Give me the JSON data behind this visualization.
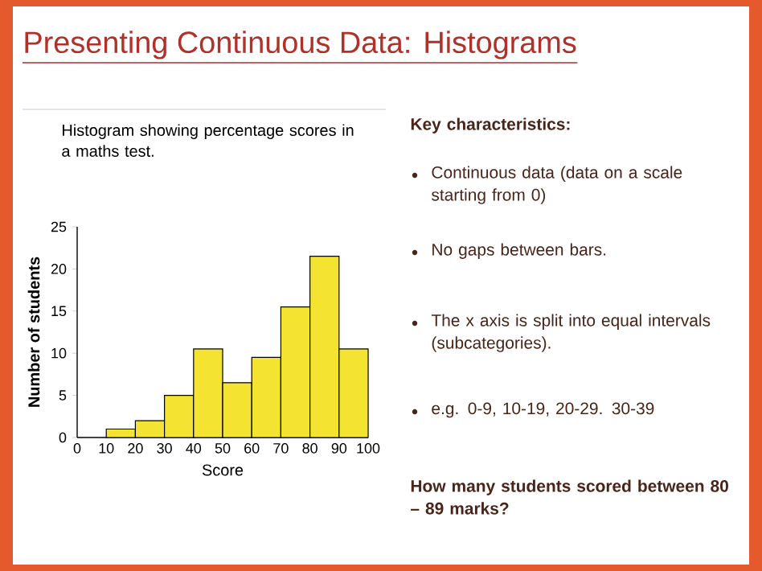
{
  "chart_data": {
    "type": "histogram",
    "title": "Presenting Continuous Data: Histograms",
    "subtitle": "Histogram showing percentage scores in a maths test.",
    "xlabel": "Score",
    "ylabel": "Number of students",
    "bins": [
      10,
      20,
      30,
      40,
      50,
      60,
      70,
      80,
      90,
      100
    ],
    "values": [
      1,
      2,
      5,
      10.5,
      6.5,
      9.5,
      15.5,
      21.5,
      10.5
    ],
    "color": "#f4e431",
    "xlim": [
      0,
      100
    ],
    "xticks": [
      0,
      10,
      20,
      30,
      40,
      50,
      60,
      70,
      80,
      90,
      100
    ],
    "ylim": [
      0,
      25
    ],
    "yticks": [
      0,
      5,
      10,
      15,
      20,
      25
    ],
    "annotations": [
      "Key characteristics:",
      "Continuous data (data on a scale starting from 0)",
      "No gaps between bars.",
      "The x axis is split into equal intervals (subcategories).",
      "e.g. 0-9, 10-19, 20-29. 30-39",
      "How many students scored between 80 – 89 marks?"
    ]
  }
}
